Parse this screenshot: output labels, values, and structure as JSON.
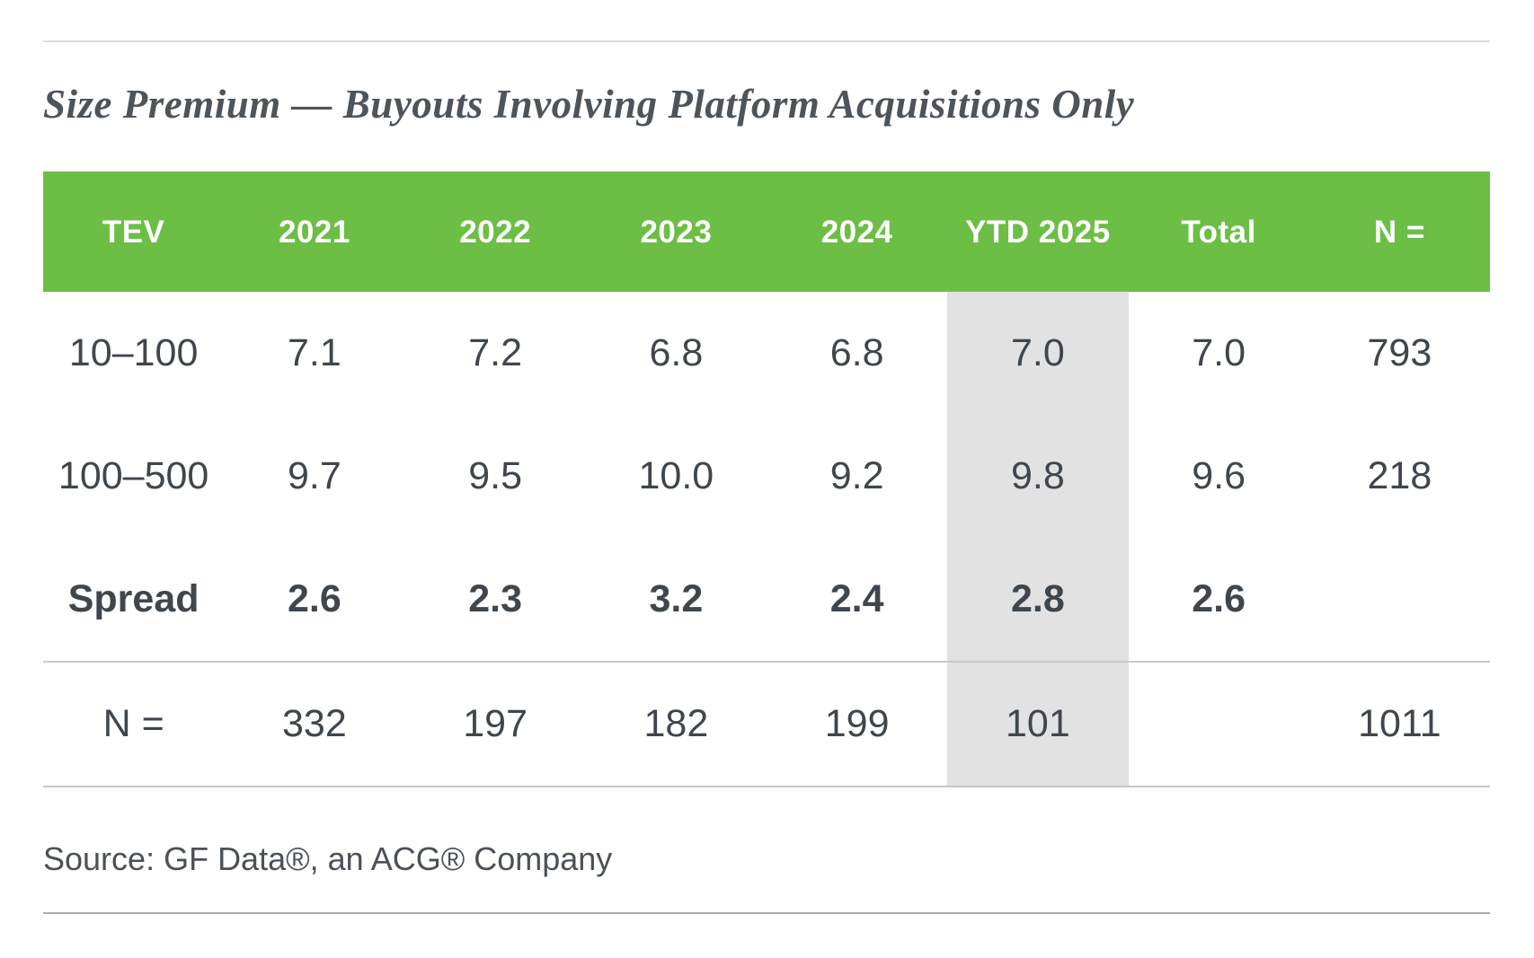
{
  "page": {
    "title": "Size Premium — Buyouts Involving Platform Acquisitions Only",
    "source": "Source: GF Data®, an ACG® Company"
  },
  "table": {
    "headers": [
      "TEV",
      "2021",
      "2022",
      "2023",
      "2024",
      "YTD 2025",
      "Total",
      "N ="
    ],
    "rows": [
      {
        "cells": [
          "10–100",
          "7.1",
          "7.2",
          "6.8",
          "6.8",
          "7.0",
          "7.0",
          "793"
        ]
      },
      {
        "cells": [
          "100–500",
          "9.7",
          "9.5",
          "10.0",
          "9.2",
          "9.8",
          "9.6",
          "218"
        ]
      },
      {
        "cells": [
          "Spread",
          "2.6",
          "2.3",
          "3.2",
          "2.4",
          "2.8",
          "2.6",
          ""
        ]
      },
      {
        "cells": [
          "N =",
          "332",
          "197",
          "182",
          "199",
          "101",
          "",
          "1011"
        ]
      }
    ],
    "highlight_column": "YTD 2025"
  },
  "colors": {
    "header_green": "#6cbe45",
    "highlight_gray": "#e2e2e2",
    "text_dark": "#3f464d",
    "title_color": "#4d545b",
    "divider_gray": "#c9c9c9"
  },
  "chart_data": {
    "type": "table",
    "title": "Size Premium — Buyouts Involving Platform Acquisitions Only",
    "columns": [
      "TEV",
      "2021",
      "2022",
      "2023",
      "2024",
      "YTD 2025",
      "Total",
      "N ="
    ],
    "rows": [
      {
        "tev": "10–100",
        "y2021": 7.1,
        "y2022": 7.2,
        "y2023": 6.8,
        "y2024": 6.8,
        "ytd_2025": 7.0,
        "total": 7.0,
        "n": 793
      },
      {
        "tev": "100–500",
        "y2021": 9.7,
        "y2022": 9.5,
        "y2023": 10.0,
        "y2024": 9.2,
        "ytd_2025": 9.8,
        "total": 9.6,
        "n": 218
      },
      {
        "tev": "Spread",
        "y2021": 2.6,
        "y2022": 2.3,
        "y2023": 3.2,
        "y2024": 2.4,
        "ytd_2025": 2.8,
        "total": 2.6,
        "n": null
      },
      {
        "tev": "N =",
        "y2021": 332,
        "y2022": 197,
        "y2023": 182,
        "y2024": 199,
        "ytd_2025": 101,
        "total": null,
        "n": 1011
      }
    ],
    "highlighted_column": "YTD 2025",
    "source": "Source: GF Data®, an ACG® Company",
    "layout_hints": {
      "header_background": "#6cbe45",
      "highlight_column_background": "#e2e2e2",
      "bold_rows": [
        "Spread"
      ]
    }
  }
}
